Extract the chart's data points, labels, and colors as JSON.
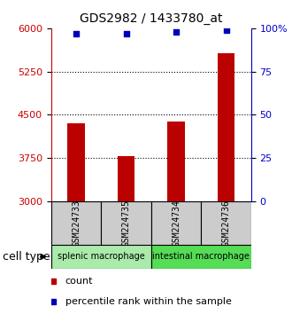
{
  "title": "GDS2982 / 1433780_at",
  "samples": [
    "GSM224733",
    "GSM224735",
    "GSM224734",
    "GSM224736"
  ],
  "counts": [
    4350,
    3780,
    4380,
    5560
  ],
  "percentiles": [
    97,
    97,
    98,
    99
  ],
  "groups": [
    {
      "label": "splenic macrophage",
      "color": "#aaeaaa",
      "indices": [
        0,
        1
      ]
    },
    {
      "label": "intestinal macrophage",
      "color": "#55dd55",
      "indices": [
        2,
        3
      ]
    }
  ],
  "ylim_left": [
    3000,
    6000
  ],
  "yticks_left": [
    3000,
    3750,
    4500,
    5250,
    6000
  ],
  "ylim_right": [
    0,
    100
  ],
  "yticks_right": [
    0,
    25,
    50,
    75,
    100
  ],
  "bar_color": "#bb0000",
  "dot_color": "#0000bb",
  "bar_width": 0.35,
  "sample_bg_color": "#cccccc",
  "title_fontsize": 10,
  "tick_fontsize": 8,
  "legend_fontsize": 8,
  "axis_left_color": "#cc0000",
  "axis_right_color": "#0000cc",
  "cell_type_fontsize": 9,
  "sample_label_fontsize": 7
}
